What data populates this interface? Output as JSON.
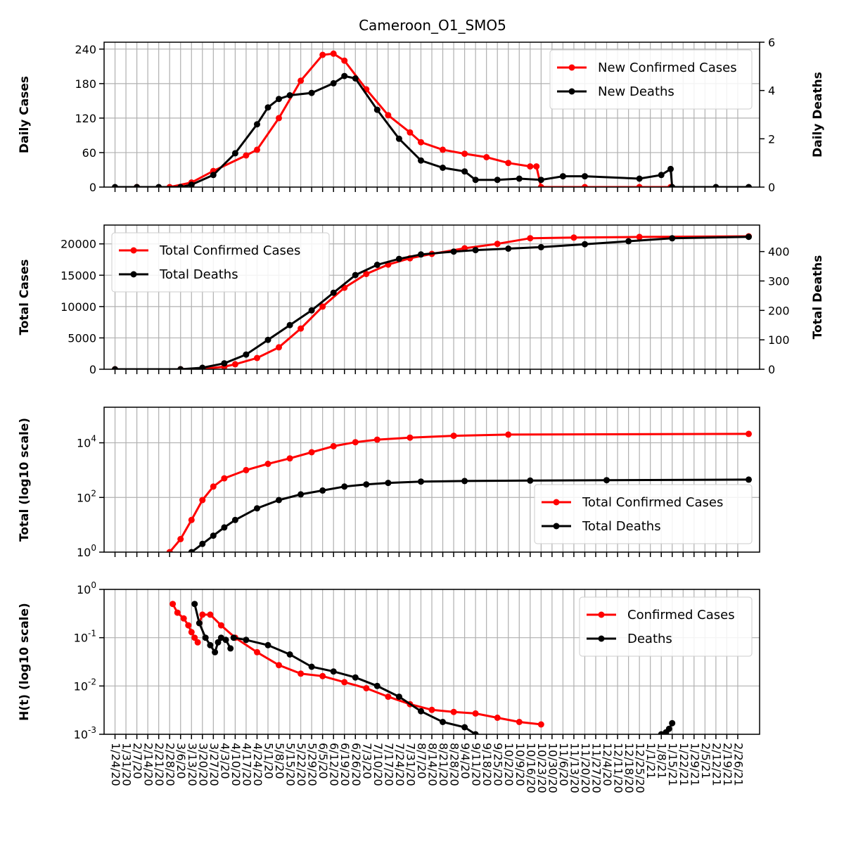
{
  "title": "Cameroon_O1_SMO5",
  "colors": {
    "cases": "#ff0000",
    "deaths": "#000000",
    "grid": "#b0b0b0"
  },
  "x_dates": [
    "1/24/20",
    "1/31/20",
    "2/7/20",
    "2/14/20",
    "2/21/20",
    "2/28/20",
    "3/6/20",
    "3/13/20",
    "3/20/20",
    "3/27/20",
    "4/3/20",
    "4/10/20",
    "4/17/20",
    "4/24/20",
    "5/1/20",
    "5/8/20",
    "5/15/20",
    "5/22/20",
    "5/29/20",
    "6/5/20",
    "6/12/20",
    "6/19/20",
    "6/26/20",
    "7/3/20",
    "7/10/20",
    "7/17/20",
    "7/24/20",
    "7/31/20",
    "8/7/20",
    "8/14/20",
    "8/21/20",
    "8/28/20",
    "9/4/20",
    "9/11/20",
    "9/18/20",
    "9/25/20",
    "10/2/20",
    "10/9/20",
    "10/16/20",
    "10/23/20",
    "10/30/20",
    "11/6/20",
    "11/13/20",
    "11/20/20",
    "11/27/20",
    "12/4/20",
    "12/11/20",
    "12/18/20",
    "12/25/20",
    "1/1/21",
    "1/8/21",
    "1/15/21",
    "1/22/21",
    "1/29/21",
    "2/5/21",
    "2/12/21",
    "2/19/21",
    "2/26/21"
  ],
  "x_tick_labels": [
    "1/24/20",
    "1/31/20",
    "2/7/20",
    "2/14/20",
    "2/21/20",
    "2/28/20",
    "3/6/20",
    "3/13/20",
    "3/20/20",
    "3/27/20",
    "4/3/20",
    "4/10/20",
    "4/17/20",
    "4/24/20",
    "5/1/20",
    "5/8/20",
    "5/15/20",
    "5/22/20",
    "5/29/20",
    "6/5/20",
    "6/12/20",
    "6/19/20",
    "6/26/20",
    "7/3/20",
    "7/10/20",
    "7/17/20",
    "7/24/20",
    "7/31/20",
    "8/7/20",
    "8/14/20",
    "8/21/20",
    "8/28/20",
    "9/4/20",
    "9/11/20",
    "9/18/20",
    "9/25/20",
    "10/2/20",
    "10/9/20",
    "10/16/20",
    "10/23/20",
    "10/30/20",
    "11/6/20",
    "11/13/20",
    "11/20/20",
    "11/27/20",
    "12/4/20",
    "12/11/20",
    "12/18/20",
    "12/25/20",
    "1/1/21",
    "1/8/21",
    "1/15/21",
    "1/22/21",
    "1/29/21",
    "2/5/21",
    "2/12/21",
    "2/19/21",
    "2/26/21"
  ],
  "chart_data": [
    {
      "type": "line",
      "ylabel": "Daily Cases",
      "y2label": "Daily Deaths",
      "ylim": [
        0,
        252
      ],
      "yticks": [
        0,
        60,
        120,
        180,
        240
      ],
      "y2lim": [
        0,
        6
      ],
      "y2ticks": [
        0,
        2,
        4,
        6
      ],
      "legend_position": "top-right",
      "series": [
        {
          "name": "New Confirmed Cases",
          "axis": "left",
          "color": "#ff0000",
          "x": [
            "2/7/20",
            "2/28/20",
            "3/13/20",
            "3/27/20",
            "4/17/20",
            "4/24/20",
            "5/8/20",
            "5/22/20",
            "6/5/20",
            "6/12/20",
            "6/19/20",
            "7/3/20",
            "7/17/20",
            "7/31/20",
            "8/7/20",
            "8/21/20",
            "9/4/20",
            "9/18/20",
            "10/2/20",
            "10/16/20",
            "10/20/20",
            "10/23/20",
            "11/20/20",
            "12/25/20",
            "1/14/21"
          ],
          "y": [
            0,
            0,
            8,
            28,
            55,
            65,
            120,
            185,
            230,
            232,
            220,
            170,
            125,
            95,
            78,
            65,
            58,
            52,
            42,
            36,
            36,
            0,
            0,
            0,
            0
          ]
        },
        {
          "name": "New Deaths",
          "axis": "right",
          "color": "#000000",
          "x": [
            "1/24/20",
            "2/7/20",
            "2/21/20",
            "3/6/20",
            "3/13/20",
            "3/27/20",
            "4/10/20",
            "4/24/20",
            "5/1/20",
            "5/8/20",
            "5/15/20",
            "5/29/20",
            "6/12/20",
            "6/19/20",
            "6/26/20",
            "7/10/20",
            "7/24/20",
            "8/7/20",
            "8/21/20",
            "9/4/20",
            "9/11/20",
            "9/25/20",
            "10/9/20",
            "10/23/20",
            "11/6/20",
            "11/20/20",
            "12/25/20",
            "1/8/21",
            "1/14/21",
            "1/15/21",
            "2/12/21",
            "3/5/21"
          ],
          "y": [
            0,
            0,
            0,
            0,
            0.1,
            0.5,
            1.4,
            2.6,
            3.3,
            3.65,
            3.8,
            3.9,
            4.3,
            4.6,
            4.5,
            3.2,
            2.0,
            1.1,
            0.8,
            0.65,
            0.3,
            0.3,
            0.35,
            0.3,
            0.45,
            0.45,
            0.35,
            0.5,
            0.75,
            0,
            0,
            0
          ]
        }
      ]
    },
    {
      "type": "line",
      "ylabel": "Total Cases",
      "y2label": "Total Deaths",
      "ylim": [
        0,
        23000
      ],
      "yticks": [
        0,
        5000,
        10000,
        15000,
        20000
      ],
      "y2lim": [
        0,
        490
      ],
      "y2ticks": [
        0,
        100,
        200,
        300,
        400
      ],
      "legend_position": "top-left",
      "series": [
        {
          "name": "Total Confirmed Cases",
          "axis": "left",
          "color": "#ff0000",
          "x": [
            "1/24/20",
            "3/6/20",
            "3/20/20",
            "4/3/20",
            "4/10/20",
            "4/24/20",
            "5/8/20",
            "5/22/20",
            "6/5/20",
            "6/19/20",
            "7/3/20",
            "7/17/20",
            "7/31/20",
            "8/14/20",
            "9/4/20",
            "9/25/20",
            "10/16/20",
            "11/13/20",
            "12/25/20",
            "3/5/21"
          ],
          "y": [
            0,
            0,
            50,
            400,
            800,
            1800,
            3500,
            6500,
            10000,
            13000,
            15200,
            16700,
            17700,
            18400,
            19300,
            20000,
            20900,
            21000,
            21100,
            21200
          ]
        },
        {
          "name": "Total Deaths",
          "axis": "right",
          "color": "#000000",
          "x": [
            "1/24/20",
            "3/6/20",
            "3/20/20",
            "4/3/20",
            "4/17/20",
            "5/1/20",
            "5/15/20",
            "5/29/20",
            "6/12/20",
            "6/26/20",
            "7/10/20",
            "7/24/20",
            "8/7/20",
            "8/28/20",
            "9/11/20",
            "10/2/20",
            "10/23/20",
            "11/20/20",
            "12/18/20",
            "1/15/21",
            "3/5/21"
          ],
          "y": [
            0,
            0,
            5,
            20,
            50,
            100,
            150,
            200,
            260,
            320,
            355,
            375,
            390,
            400,
            405,
            410,
            415,
            425,
            435,
            445,
            450
          ]
        }
      ]
    },
    {
      "type": "line",
      "ylabel": "Total (log10 scale)",
      "yscale": "log",
      "ylim": [
        1,
        200000
      ],
      "yticks": [
        1,
        100,
        10000
      ],
      "ytick_labels": [
        "10^0",
        "10^2",
        "10^4"
      ],
      "legend_position": "bottom-right",
      "series": [
        {
          "name": "Total Confirmed Cases",
          "color": "#ff0000",
          "x": [
            "2/28/20",
            "3/6/20",
            "3/13/20",
            "3/20/20",
            "3/27/20",
            "4/3/20",
            "4/17/20",
            "5/1/20",
            "5/15/20",
            "5/29/20",
            "6/12/20",
            "6/26/20",
            "7/10/20",
            "7/31/20",
            "8/28/20",
            "10/2/20",
            "3/5/21"
          ],
          "y": [
            1,
            3,
            15,
            80,
            250,
            500,
            1000,
            1700,
            2700,
            4500,
            7500,
            10500,
            13000,
            15500,
            18000,
            20000,
            21200
          ]
        },
        {
          "name": "Total Deaths",
          "color": "#000000",
          "x": [
            "3/13/20",
            "3/20/20",
            "3/27/20",
            "4/3/20",
            "4/10/20",
            "4/24/20",
            "5/8/20",
            "5/22/20",
            "6/5/20",
            "6/19/20",
            "7/3/20",
            "7/17/20",
            "8/7/20",
            "9/4/20",
            "10/16/20",
            "12/4/20",
            "3/5/21"
          ],
          "y": [
            1,
            2,
            4,
            8,
            15,
            40,
            80,
            130,
            180,
            250,
            300,
            340,
            380,
            400,
            415,
            430,
            450
          ]
        }
      ]
    },
    {
      "type": "line",
      "ylabel": "H(t) (log10 scale)",
      "yscale": "log",
      "ylim": [
        0.001,
        1
      ],
      "yticks": [
        0.001,
        0.01,
        0.1,
        1
      ],
      "ytick_labels": [
        "10^-3",
        "10^-2",
        "10^-1",
        "10^0"
      ],
      "legend_position": "top-right",
      "series": [
        {
          "name": "Confirmed Cases",
          "color": "#ff0000",
          "segments": [
            {
              "x": [
                "3/1/20",
                "3/4/20",
                "3/8/20",
                "3/11/20",
                "3/13/20",
                "3/15/20",
                "3/17/20"
              ],
              "y": [
                0.5,
                0.33,
                0.25,
                0.18,
                0.13,
                0.1,
                0.08
              ]
            },
            {
              "x": [
                "3/18/20",
                "3/20/20",
                "3/25/20",
                "4/1/20",
                "4/10/20",
                "4/24/20",
                "5/8/20",
                "5/22/20",
                "6/5/20",
                "6/19/20",
                "7/3/20",
                "7/17/20",
                "7/31/20",
                "8/14/20",
                "8/28/20",
                "9/11/20",
                "9/25/20",
                "10/9/20",
                "10/23/20"
              ],
              "y": [
                0.2,
                0.3,
                0.3,
                0.18,
                0.1,
                0.05,
                0.027,
                0.018,
                0.016,
                0.012,
                0.009,
                0.006,
                0.0042,
                0.0032,
                0.0029,
                0.0027,
                0.0022,
                0.0018,
                0.0016
              ]
            }
          ]
        },
        {
          "name": "Deaths",
          "color": "#000000",
          "segments": [
            {
              "x": [
                "3/15/20",
                "3/18/20",
                "3/22/20",
                "3/25/20",
                "3/28/20",
                "3/30/20",
                "4/1/20",
                "4/4/20",
                "4/7/20"
              ],
              "y": [
                0.5,
                0.2,
                0.1,
                0.07,
                0.05,
                0.08,
                0.1,
                0.09,
                0.06
              ]
            },
            {
              "x": [
                "4/9/20",
                "4/17/20",
                "5/1/20",
                "5/15/20",
                "5/29/20",
                "6/12/20",
                "6/26/20",
                "7/10/20",
                "7/24/20",
                "8/7/20",
                "8/21/20",
                "9/4/20",
                "9/11/20"
              ],
              "y": [
                0.1,
                0.09,
                0.07,
                0.045,
                0.025,
                0.02,
                0.015,
                0.01,
                0.006,
                0.003,
                0.0018,
                0.0014,
                0.001
              ]
            },
            {
              "x": [
                "1/8/21",
                "1/11/21",
                "1/13/21",
                "1/15/21"
              ],
              "y": [
                0.001,
                0.0011,
                0.0013,
                0.0017
              ]
            }
          ]
        }
      ]
    }
  ]
}
